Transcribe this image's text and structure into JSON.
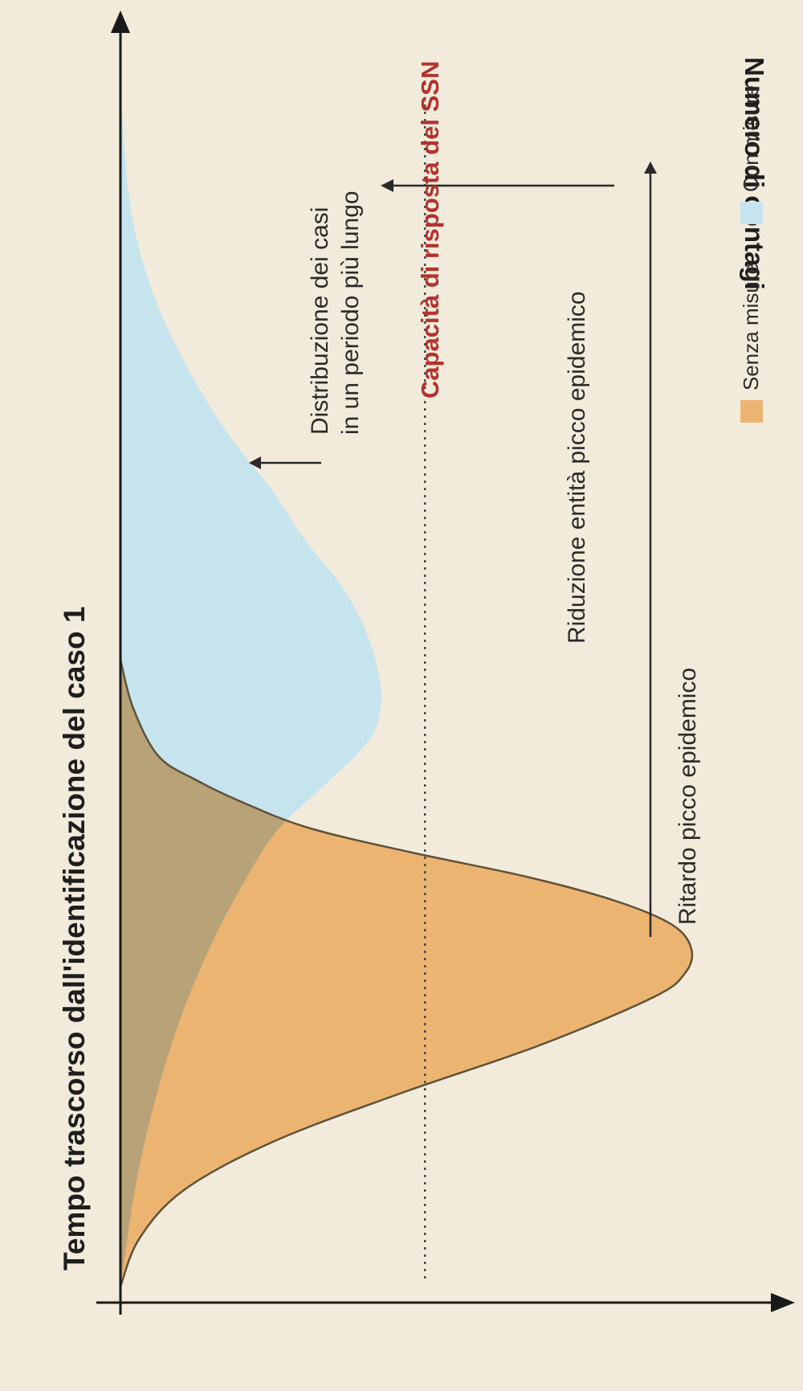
{
  "chart_data": {
    "type": "area",
    "title": "",
    "xlabel": "Tempo trascorso dall'identificazione del caso 1",
    "ylabel": "Numero di contagi",
    "xlim": [
      0,
      100
    ],
    "ylim": [
      0,
      100
    ],
    "grid": false,
    "legend": {
      "placement": "top-right",
      "items": [
        {
          "label": "Senza misure",
          "color": "#ecb471"
        },
        {
          "label": "Con misure",
          "color": "#c6e4ee"
        }
      ]
    },
    "series": [
      {
        "name": "Senza misure",
        "color": "#ecb471",
        "x": [
          0,
          4,
          8,
          12,
          16,
          20,
          24,
          26,
          28,
          30,
          32,
          34,
          36,
          38,
          40,
          42,
          44,
          48,
          52
        ],
        "y": [
          0,
          3,
          10,
          24,
          44,
          66,
          84,
          89,
          90,
          87,
          78,
          64,
          46,
          30,
          20,
          12,
          6,
          2,
          0
        ]
      },
      {
        "name": "Con misure",
        "color": "#c6e4ee",
        "x": [
          0,
          10,
          20,
          28,
          34,
          38,
          42,
          44,
          46,
          48,
          50,
          54,
          58,
          62,
          66,
          70,
          74,
          80,
          86,
          92,
          100
        ],
        "y": [
          0,
          3,
          8,
          14,
          20,
          25,
          33,
          37,
          40,
          41,
          41,
          39,
          35,
          29,
          24,
          18,
          13,
          7,
          3,
          1,
          0
        ]
      }
    ],
    "overlap_color": "#b8a278",
    "threshold": {
      "label": "Capacità di risposta del SSN",
      "y": 48,
      "color": "#b4322d"
    },
    "annotations": [
      {
        "id": "delay",
        "text": "Ritardo picco epidemico"
      },
      {
        "id": "reduction",
        "text": "Riduzione entità picco epidemico"
      },
      {
        "id": "distribution",
        "lines": [
          "Distribuzione dei casi",
          "in un periodo più lungo"
        ]
      }
    ]
  }
}
